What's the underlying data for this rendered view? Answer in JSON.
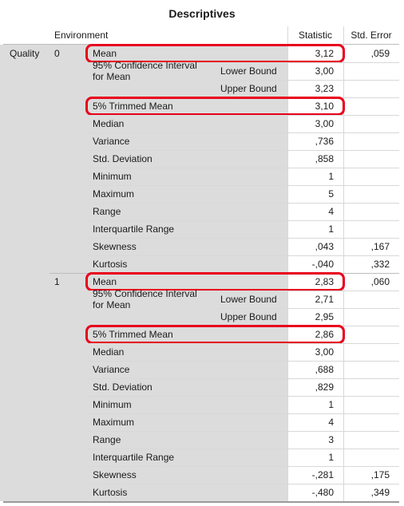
{
  "title": "Descriptives",
  "headers": {
    "environment": "Environment",
    "statistic": "Statistic",
    "std_error": "Std. Error"
  },
  "dependent": "Quality",
  "ci_label_line1": "95% Confidence Interval",
  "ci_label_line2": "for Mean",
  "groups": [
    {
      "level": "0",
      "rows": [
        {
          "label": "Mean",
          "stat": "3,12",
          "se": ",059"
        },
        {
          "label": "Lower Bound",
          "stat": "3,00",
          "se": ""
        },
        {
          "label": "Upper Bound",
          "stat": "3,23",
          "se": ""
        },
        {
          "label": "5% Trimmed Mean",
          "stat": "3,10",
          "se": ""
        },
        {
          "label": "Median",
          "stat": "3,00",
          "se": ""
        },
        {
          "label": "Variance",
          "stat": ",736",
          "se": ""
        },
        {
          "label": "Std. Deviation",
          "stat": ",858",
          "se": ""
        },
        {
          "label": "Minimum",
          "stat": "1",
          "se": ""
        },
        {
          "label": "Maximum",
          "stat": "5",
          "se": ""
        },
        {
          "label": "Range",
          "stat": "4",
          "se": ""
        },
        {
          "label": "Interquartile Range",
          "stat": "1",
          "se": ""
        },
        {
          "label": "Skewness",
          "stat": ",043",
          "se": ",167"
        },
        {
          "label": "Kurtosis",
          "stat": "-,040",
          "se": ",332"
        }
      ]
    },
    {
      "level": "1",
      "rows": [
        {
          "label": "Mean",
          "stat": "2,83",
          "se": ",060"
        },
        {
          "label": "Lower Bound",
          "stat": "2,71",
          "se": ""
        },
        {
          "label": "Upper Bound",
          "stat": "2,95",
          "se": ""
        },
        {
          "label": "5% Trimmed Mean",
          "stat": "2,86",
          "se": ""
        },
        {
          "label": "Median",
          "stat": "3,00",
          "se": ""
        },
        {
          "label": "Variance",
          "stat": ",688",
          "se": ""
        },
        {
          "label": "Std. Deviation",
          "stat": ",829",
          "se": ""
        },
        {
          "label": "Minimum",
          "stat": "1",
          "se": ""
        },
        {
          "label": "Maximum",
          "stat": "4",
          "se": ""
        },
        {
          "label": "Range",
          "stat": "3",
          "se": ""
        },
        {
          "label": "Interquartile Range",
          "stat": "1",
          "se": ""
        },
        {
          "label": "Skewness",
          "stat": "-,281",
          "se": ",175"
        },
        {
          "label": "Kurtosis",
          "stat": "-,480",
          "se": ",349"
        }
      ]
    }
  ],
  "highlight_color": "#e8001c",
  "shade_color": "#dcdcdc"
}
